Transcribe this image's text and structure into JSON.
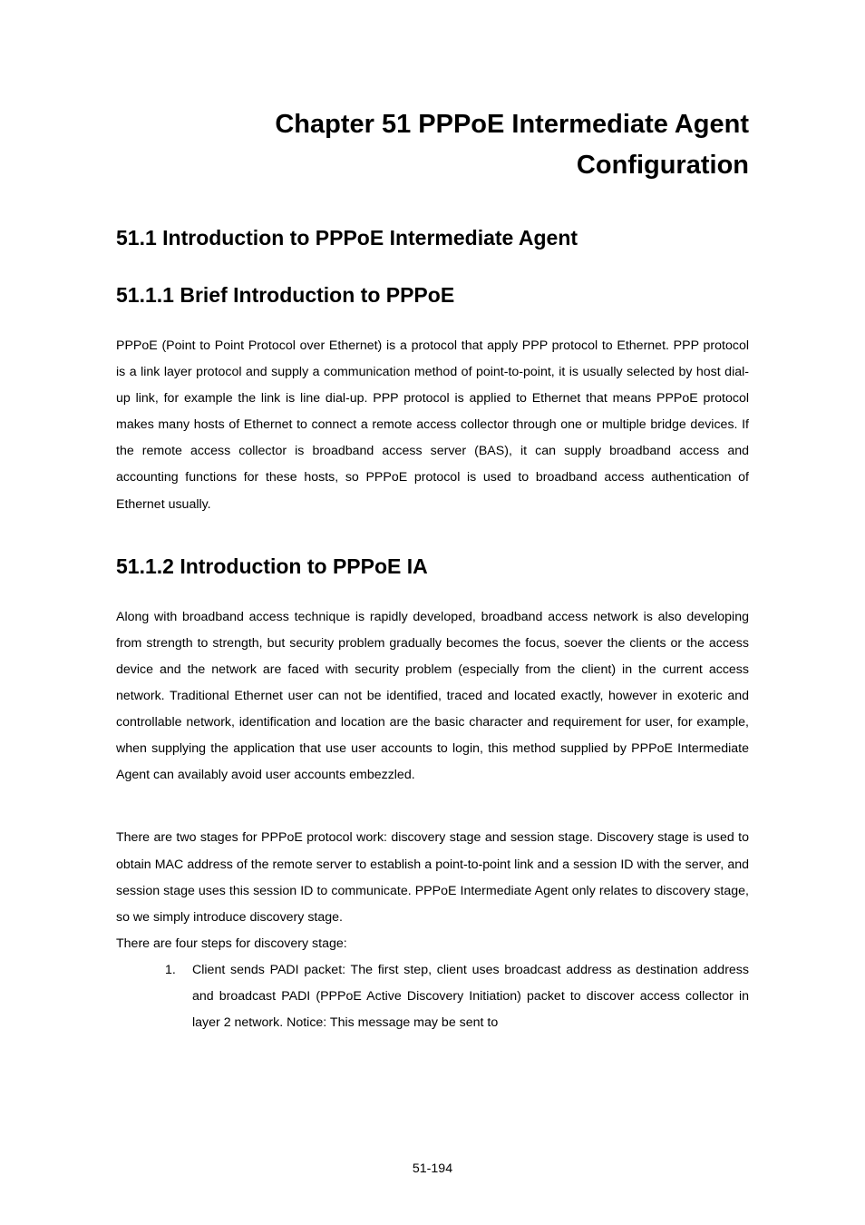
{
  "chapter_title": "Chapter 51 PPPoE Intermediate Agent Configuration",
  "section_51_1": {
    "heading": "51.1 Introduction to PPPoE Intermediate Agent"
  },
  "section_51_1_1": {
    "heading": "51.1.1 Brief Introduction to PPPoE",
    "para1": "PPPoE (Point to Point Protocol over Ethernet) is a protocol that apply PPP protocol to Ethernet. PPP protocol is a link layer protocol and supply a communication method of point-to-point, it is usually selected by host dial-up link, for example the link is line dial-up. PPP protocol is applied to Ethernet that means PPPoE protocol makes many hosts of Ethernet to connect a remote access collector through one or multiple bridge devices. If the remote access collector is broadband access server (BAS), it can supply broadband access and accounting functions for these hosts, so PPPoE protocol is used to broadband access authentication of Ethernet usually."
  },
  "section_51_1_2": {
    "heading": "51.1.2 Introduction to PPPoE IA",
    "para1": "Along with broadband access technique is rapidly developed, broadband access network is also developing from strength to strength, but security problem gradually becomes the focus, soever the clients or the access device and the network are faced with security problem (especially from the client) in the current access network. Traditional Ethernet user can not be identified, traced and located exactly, however in exoteric and controllable network, identification and location are the basic character and requirement for user, for example, when supplying the application that use user accounts to login, this method supplied by PPPoE Intermediate Agent can availably avoid user accounts embezzled.",
    "para2": "There are two stages for PPPoE protocol work: discovery stage and session stage. Discovery stage is used to obtain MAC address of the remote server to establish a point-to-point link and a session ID with the server, and session stage uses this session ID to communicate. PPPoE Intermediate Agent only relates to discovery stage, so we simply introduce discovery stage.",
    "para3": "There are four steps for discovery stage:",
    "list_item_1_num": "1.",
    "list_item_1_body": "Client sends PADI packet: The first step, client uses broadcast address as destination address and broadcast PADI (PPPoE Active Discovery Initiation) packet to discover access collector in layer 2 network. Notice: This message may be sent to"
  },
  "footer": "51-194"
}
